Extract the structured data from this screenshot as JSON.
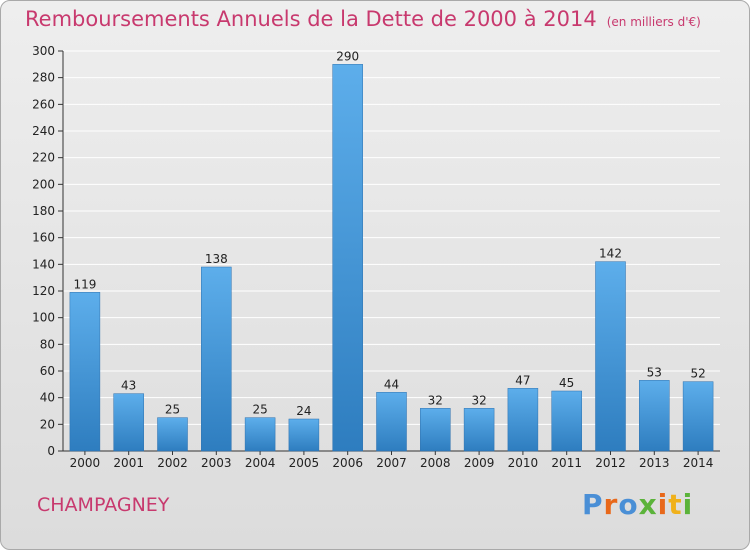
{
  "header": {
    "title": "Remboursements Annuels de la Dette de 2000 à 2014",
    "unit": "(en milliers d'€)"
  },
  "commune": "CHAMPAGNEY",
  "logo": {
    "text": "Proxiti",
    "letter_colors": [
      "#4a8fd6",
      "#e8681a",
      "#4a8fd6",
      "#5bb33a",
      "#e8681a",
      "#f0b11b",
      "#5bb33a"
    ]
  },
  "colors": {
    "title": "#c8396e",
    "bar_top": "#5daeeb",
    "bar_bottom": "#2e7dbf",
    "grid": "#ffffff"
  },
  "chart_data": {
    "type": "bar",
    "title": "Remboursements Annuels de la Dette de 2000 à 2014",
    "subtitle": "(en milliers d'€)",
    "categories": [
      "2000",
      "2001",
      "2002",
      "2003",
      "2004",
      "2005",
      "2006",
      "2007",
      "2008",
      "2009",
      "2010",
      "2011",
      "2012",
      "2013",
      "2014"
    ],
    "values": [
      119,
      43,
      25,
      138,
      25,
      24,
      290,
      44,
      32,
      32,
      47,
      45,
      142,
      53,
      52
    ],
    "ylim": [
      0,
      300
    ],
    "yticks": [
      0,
      20,
      40,
      60,
      80,
      100,
      120,
      140,
      160,
      180,
      200,
      220,
      240,
      260,
      280,
      300
    ],
    "grid": true,
    "data_labels": true,
    "xlabel": "",
    "ylabel": ""
  }
}
